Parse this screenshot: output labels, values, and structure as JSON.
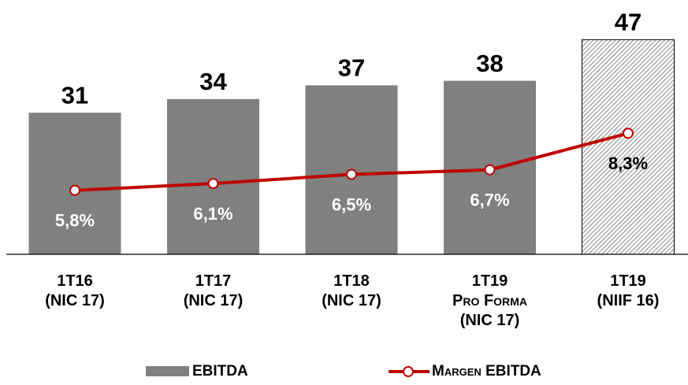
{
  "chart_data": {
    "type": "bar_line",
    "categories": [
      "1T16\n(NIC 17)",
      "1T17\n(NIC 17)",
      "1T18\n(NIC 17)",
      "1T19\nPro Forma\n(NIC 17)",
      "1T19\n(NIIF 16)"
    ],
    "series": [
      {
        "name": "EBITDA",
        "color": "#808080",
        "values": [
          31,
          34,
          37,
          38,
          47
        ],
        "hatched": [
          false,
          false,
          false,
          false,
          true
        ]
      },
      {
        "name": "Margen EBITDA",
        "color": "#c00000",
        "axis": "y2",
        "values": [
          5.8,
          6.1,
          6.5,
          6.7,
          8.3
        ],
        "value_labels": [
          "5,8%",
          "6,1%",
          "6,5%",
          "6,7%",
          "8,3%"
        ]
      }
    ],
    "ylim": [
      0,
      50
    ],
    "y2lim": [
      3,
      13
    ]
  }
}
